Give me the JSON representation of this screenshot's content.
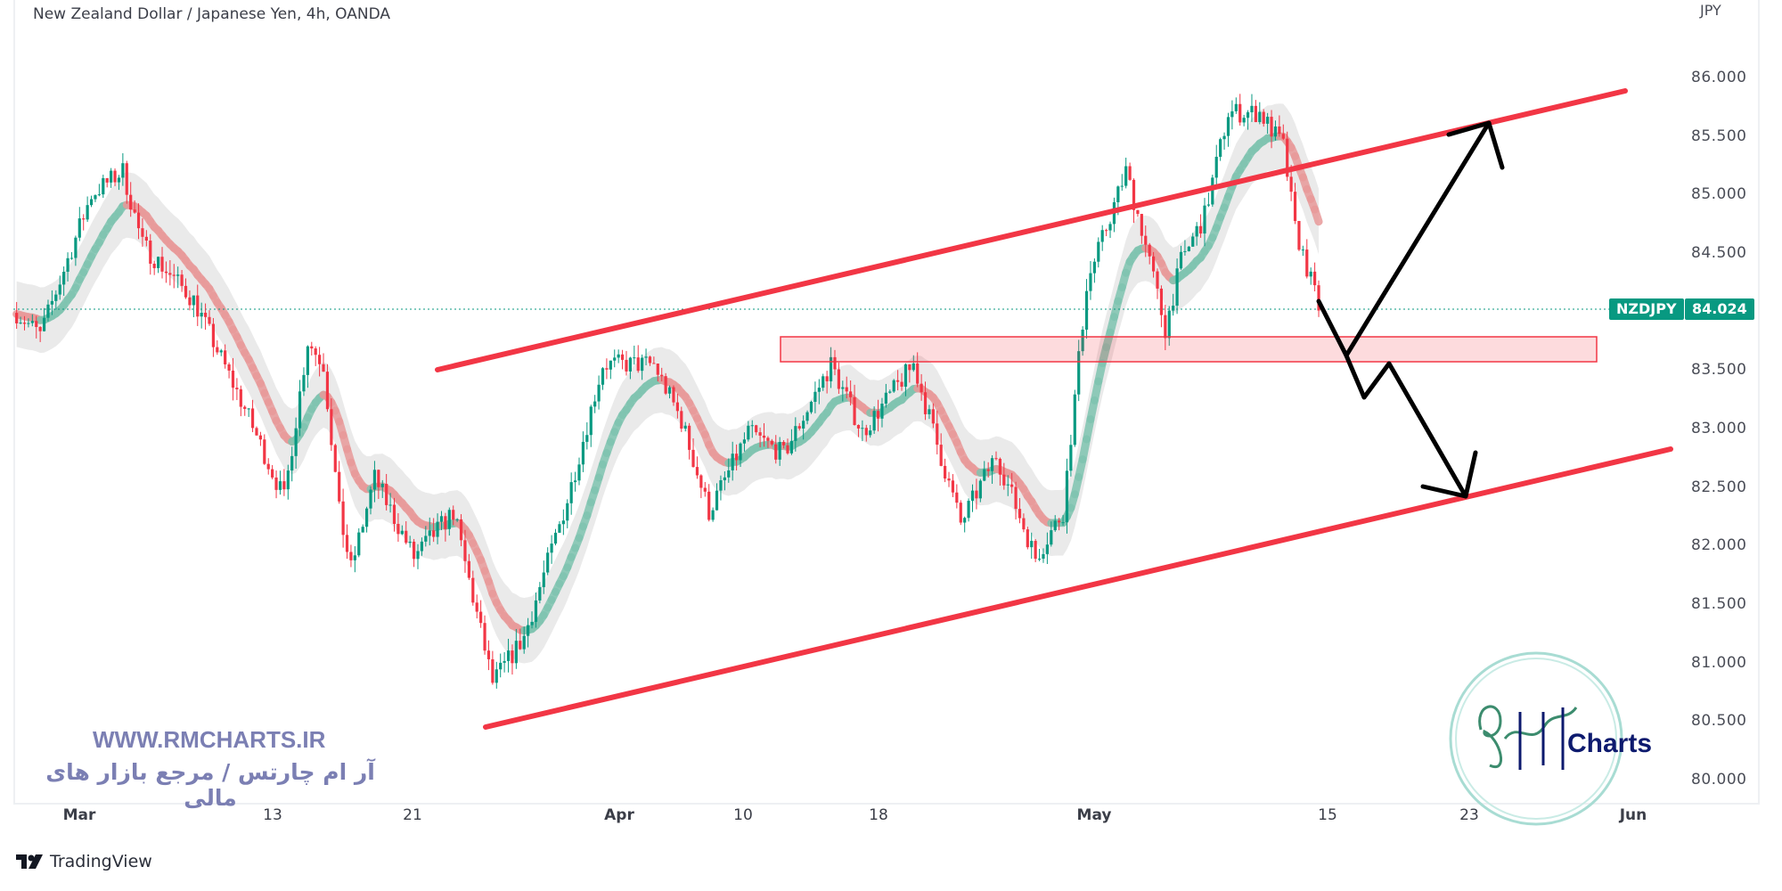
{
  "header": {
    "title": "New Zealand Dollar / Japanese Yen, 4h, OANDA"
  },
  "footer": {
    "brand": "TradingView"
  },
  "watermark": {
    "url": "WWW.RMCHARTS.IR",
    "tagline": "آر ام چارتس / مرجع بازار های مالی",
    "logo_text": "RMCharts"
  },
  "colors": {
    "up": "#089981",
    "down": "#f23645",
    "channel": "#f23645",
    "zone_fill": "#f23645",
    "arrows": "#000000",
    "ma_up": "#7fc4b0",
    "ma_down": "#e89a9a",
    "watermark": "#7b7fb3"
  },
  "chart_data": {
    "type": "candlestick",
    "symbol": "NZDJPY",
    "timeframe": "4h",
    "source": "OANDA",
    "currency": "JPY",
    "last_price": "84.024",
    "ylim": [
      79.8,
      86.3
    ],
    "yticks": [
      "86.000",
      "85.500",
      "85.000",
      "84.500",
      "83.500",
      "83.000",
      "82.500",
      "82.000",
      "81.500",
      "81.000",
      "80.500",
      "80.000"
    ],
    "xticks": [
      "Mar",
      "13",
      "21",
      "Apr",
      "10",
      "18",
      "May",
      "15",
      "23",
      "Jun"
    ],
    "price_path": [
      [
        "2023-02-24 08:00",
        83.99
      ],
      [
        "2023-02-27 08:00",
        83.8
      ],
      [
        "2023-03-01 12:00",
        85.0
      ],
      [
        "2023-03-02 20:00",
        85.2
      ],
      [
        "2023-03-03 16:00",
        84.57
      ],
      [
        "2023-03-07 20:00",
        84.1
      ],
      [
        "2023-03-10 00:00",
        83.17
      ],
      [
        "2023-03-13 16:00",
        82.4
      ],
      [
        "2023-03-14 16:00",
        83.75
      ],
      [
        "2023-03-15 08:00",
        83.55
      ],
      [
        "2023-03-16 00:00",
        82.29
      ],
      [
        "2023-03-16 12:00",
        81.8
      ],
      [
        "2023-03-17 12:00",
        82.58
      ],
      [
        "2023-03-21 04:00",
        81.9
      ],
      [
        "2023-03-22 20:00",
        82.29
      ],
      [
        "2023-03-24 12:00",
        80.83
      ],
      [
        "2023-03-27 20:00",
        81.22
      ],
      [
        "2023-03-29 16:00",
        82.39
      ],
      [
        "2023-03-31 04:00",
        83.55
      ],
      [
        "2023-04-04 08:00",
        83.55
      ],
      [
        "2023-04-05 12:00",
        83.07
      ],
      [
        "2023-04-06 16:00",
        82.29
      ],
      [
        "2023-04-10 08:00",
        82.97
      ],
      [
        "2023-04-11 20:00",
        82.78
      ],
      [
        "2023-04-13 20:00",
        83.55
      ],
      [
        "2023-04-17 04:00",
        82.97
      ],
      [
        "2023-04-19 08:00",
        83.55
      ],
      [
        "2023-04-21 08:00",
        82.19
      ],
      [
        "2023-04-24 20:00",
        82.78
      ],
      [
        "2023-04-26 12:00",
        81.9
      ],
      [
        "2023-04-27 16:00",
        82.29
      ],
      [
        "2023-04-28 16:00",
        84.23
      ],
      [
        "2023-05-02 08:00",
        85.2
      ],
      [
        "2023-05-03 00:00",
        84.71
      ],
      [
        "2023-05-04 00:00",
        83.85
      ],
      [
        "2023-05-04 16:00",
        84.43
      ],
      [
        "2023-05-05 16:00",
        84.82
      ],
      [
        "2023-05-08 16:00",
        85.7
      ],
      [
        "2023-05-10 00:00",
        85.7
      ],
      [
        "2023-05-11 00:00",
        85.41
      ],
      [
        "2023-05-11 12:00",
        84.71
      ],
      [
        "2023-05-12 12:00",
        84.04
      ]
    ],
    "annotations": {
      "channel": "ascending channel (two red trendlines)",
      "zone": "support/resistance zone ~83.60–83.80",
      "scenarios": [
        "bounce to upper channel line ~85.6",
        "break down to lower channel line ~82.4"
      ]
    }
  }
}
